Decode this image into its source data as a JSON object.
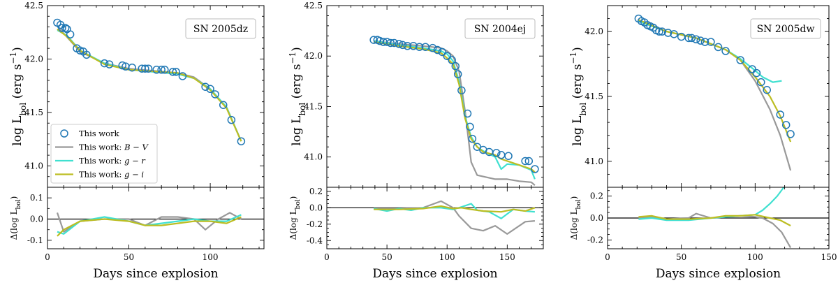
{
  "colors": {
    "points": "#1f77b4",
    "bv": "#999999",
    "gr": "#40e0d0",
    "gi": "#bcbd22",
    "zero_line": "#000000"
  },
  "legend": {
    "location": "lower-left of first panel",
    "entries": [
      {
        "key": "points",
        "label": "This work",
        "marker": "open-circle"
      },
      {
        "key": "bv",
        "label": "This work: B − V",
        "marker": "line"
      },
      {
        "key": "gr",
        "label": "This work: g − r",
        "marker": "line"
      },
      {
        "key": "gi",
        "label": "This work: g − i",
        "marker": "line"
      }
    ]
  },
  "chart_data": [
    {
      "type": "line",
      "panel_label": "SN 2005dz",
      "xlabel": "Days since explosion",
      "ylabel_main": "log L_bol (erg s^-1)",
      "ylabel_resid": "Δ(log L_bol)",
      "xlim": [
        0,
        133
      ],
      "xticks": [
        0,
        50,
        100
      ],
      "ylim_main": [
        40.8,
        42.5
      ],
      "yticks_main": [
        41.0,
        41.5,
        42.0,
        42.5
      ],
      "ylim_resid": [
        -0.14,
        0.15
      ],
      "yticks_resid": [
        -0.1,
        0.0,
        0.1
      ],
      "points": {
        "x": [
          6,
          8,
          9,
          11,
          12,
          14,
          18,
          20,
          22,
          24,
          35,
          38,
          46,
          48,
          52,
          58,
          60,
          62,
          67,
          70,
          72,
          77,
          79,
          83,
          97,
          100,
          103,
          108,
          113,
          119
        ],
        "y": [
          42.34,
          42.32,
          42.29,
          42.29,
          42.28,
          42.23,
          42.1,
          42.08,
          42.07,
          42.04,
          41.96,
          41.95,
          41.94,
          41.93,
          41.92,
          41.91,
          41.91,
          41.91,
          41.9,
          41.9,
          41.9,
          41.88,
          41.88,
          41.84,
          41.74,
          41.72,
          41.67,
          41.57,
          41.43,
          41.23
        ]
      },
      "series": [
        {
          "key": "bv",
          "name": "This work: B − V",
          "x": [
            6,
            10,
            20,
            35,
            50,
            80,
            90,
            100,
            110,
            119
          ],
          "y": [
            42.31,
            42.24,
            42.07,
            41.96,
            41.91,
            41.87,
            41.83,
            41.72,
            41.55,
            41.23
          ]
        },
        {
          "key": "gr",
          "name": "This work: g − r",
          "x": [
            6,
            12,
            20,
            35,
            50,
            80,
            90,
            100,
            110,
            119
          ],
          "y": [
            42.27,
            42.22,
            42.08,
            41.96,
            41.9,
            41.86,
            41.82,
            41.72,
            41.55,
            41.23
          ]
        },
        {
          "key": "gi",
          "name": "This work: g − i",
          "x": [
            6,
            12,
            20,
            35,
            50,
            80,
            90,
            100,
            110,
            119
          ],
          "y": [
            42.28,
            42.21,
            42.08,
            41.95,
            41.9,
            41.87,
            41.82,
            41.71,
            41.54,
            41.23
          ]
        }
      ],
      "residuals": [
        {
          "key": "bv",
          "x": [
            6,
            10,
            20,
            35,
            50,
            60,
            70,
            80,
            90,
            97,
            105,
            112,
            119
          ],
          "y": [
            0.03,
            -0.06,
            -0.01,
            0.0,
            0.0,
            -0.03,
            0.01,
            0.01,
            0.0,
            -0.05,
            0.0,
            0.03,
            0.0
          ]
        },
        {
          "key": "gr",
          "x": [
            6,
            10,
            20,
            35,
            50,
            60,
            70,
            80,
            90,
            100,
            110,
            119
          ],
          "y": [
            -0.06,
            -0.07,
            -0.01,
            0.01,
            -0.01,
            -0.03,
            -0.02,
            -0.01,
            0.0,
            -0.01,
            -0.01,
            0.02
          ]
        },
        {
          "key": "gi",
          "x": [
            6,
            10,
            20,
            35,
            50,
            60,
            70,
            80,
            90,
            100,
            110,
            119
          ],
          "y": [
            -0.08,
            -0.05,
            -0.01,
            0.0,
            -0.01,
            -0.03,
            -0.03,
            -0.02,
            -0.01,
            -0.01,
            -0.02,
            0.01
          ]
        }
      ]
    },
    {
      "type": "line",
      "panel_label": "SN 2004ej",
      "xlabel": "Days since explosion",
      "ylabel_main": "log L_bol (erg s^-1)",
      "ylabel_resid": "Δ(log L_bol)",
      "xlim": [
        0,
        180
      ],
      "xticks": [
        0,
        50,
        100,
        150
      ],
      "ylim_main": [
        40.7,
        42.5
      ],
      "yticks_main": [
        41.0,
        41.5,
        42.0,
        42.5
      ],
      "ylim_resid": [
        -0.5,
        0.25
      ],
      "yticks_resid": [
        -0.4,
        -0.2,
        0.0,
        0.2
      ],
      "points": {
        "x": [
          39,
          42,
          44,
          47,
          50,
          53,
          56,
          60,
          63,
          67,
          72,
          77,
          82,
          88,
          92,
          96,
          100,
          104,
          107,
          109,
          112,
          117,
          119,
          121,
          125,
          130,
          135,
          141,
          145,
          151,
          165,
          168,
          173
        ],
        "y": [
          42.16,
          42.16,
          42.15,
          42.14,
          42.14,
          42.13,
          42.13,
          42.12,
          42.11,
          42.1,
          42.1,
          42.09,
          42.09,
          42.08,
          42.06,
          42.04,
          42.0,
          41.96,
          41.9,
          41.82,
          41.66,
          41.43,
          41.3,
          41.18,
          41.1,
          41.07,
          41.05,
          41.04,
          41.02,
          41.01,
          40.96,
          40.96,
          40.88
        ]
      },
      "series": [
        {
          "key": "bv",
          "name": "This work: B − V",
          "x": [
            39,
            60,
            80,
            95,
            100,
            105,
            110,
            115,
            120,
            125,
            140,
            150,
            160,
            170,
            173
          ],
          "y": [
            42.15,
            42.12,
            42.1,
            42.08,
            42.05,
            42.0,
            41.85,
            41.45,
            40.95,
            40.82,
            40.78,
            40.78,
            40.76,
            40.75,
            40.72
          ]
        },
        {
          "key": "gr",
          "name": "This work: g − r",
          "x": [
            39,
            60,
            80,
            95,
            100,
            105,
            110,
            115,
            120,
            125,
            130,
            140,
            145,
            150,
            160,
            170,
            173
          ],
          "y": [
            42.15,
            42.11,
            42.08,
            42.05,
            42.02,
            41.95,
            41.75,
            41.4,
            41.2,
            41.1,
            41.06,
            41.0,
            40.88,
            40.93,
            40.92,
            40.87,
            40.78
          ]
        },
        {
          "key": "gi",
          "name": "This work: g − i",
          "x": [
            39,
            60,
            80,
            95,
            100,
            105,
            110,
            115,
            120,
            125,
            130,
            140,
            145,
            150,
            160,
            170,
            173
          ],
          "y": [
            42.14,
            42.1,
            42.07,
            42.03,
            41.98,
            41.92,
            41.72,
            41.38,
            41.18,
            41.1,
            41.05,
            41.02,
            40.98,
            40.96,
            40.92,
            40.88,
            40.85
          ]
        }
      ],
      "residuals": [
        {
          "key": "bv",
          "x": [
            39,
            60,
            80,
            95,
            105,
            110,
            120,
            130,
            140,
            150,
            165,
            173
          ],
          "y": [
            -0.01,
            -0.01,
            0.0,
            0.08,
            0.0,
            -0.1,
            -0.25,
            -0.28,
            -0.22,
            -0.32,
            -0.17,
            -0.16
          ]
        },
        {
          "key": "gr",
          "x": [
            39,
            50,
            60,
            70,
            80,
            95,
            105,
            112,
            120,
            125,
            135,
            145,
            155,
            165,
            173
          ],
          "y": [
            -0.01,
            -0.04,
            -0.01,
            -0.03,
            0.0,
            0.0,
            -0.02,
            0.01,
            0.05,
            -0.03,
            -0.05,
            -0.13,
            -0.02,
            -0.04,
            -0.05
          ]
        },
        {
          "key": "gi",
          "x": [
            39,
            60,
            80,
            95,
            105,
            112,
            120,
            130,
            145,
            155,
            165,
            173
          ],
          "y": [
            -0.02,
            -0.02,
            -0.01,
            0.02,
            -0.01,
            0.0,
            -0.02,
            -0.04,
            -0.05,
            -0.02,
            -0.04,
            0.0
          ]
        }
      ]
    },
    {
      "type": "line",
      "panel_label": "SN 2005dw",
      "xlabel": "Days since explosion",
      "ylabel_main": "log L_bol (erg s^-1)",
      "ylabel_resid": "Δ(log L_bol)",
      "xlim": [
        0,
        150
      ],
      "xticks": [
        0,
        50,
        100,
        150
      ],
      "ylim_main": [
        40.8,
        42.2
      ],
      "yticks_main": [
        41.0,
        41.5,
        42.0
      ],
      "ylim_resid": [
        -0.28,
        0.28
      ],
      "yticks_resid": [
        -0.2,
        0.0,
        0.2
      ],
      "points": {
        "x": [
          21,
          23,
          25,
          27,
          29,
          31,
          33,
          35,
          37,
          41,
          45,
          50,
          55,
          57,
          60,
          63,
          66,
          70,
          75,
          80,
          90,
          98,
          101,
          104,
          108,
          117,
          121,
          124
        ],
        "y": [
          42.1,
          42.08,
          42.07,
          42.05,
          42.04,
          42.03,
          42.01,
          42.0,
          42.0,
          41.99,
          41.98,
          41.96,
          41.95,
          41.95,
          41.94,
          41.93,
          41.92,
          41.92,
          41.88,
          41.85,
          41.78,
          41.71,
          41.68,
          41.61,
          41.55,
          41.36,
          41.28,
          41.21
        ]
      },
      "series": [
        {
          "key": "bv",
          "name": "This work: B − V",
          "x": [
            21,
            40,
            60,
            80,
            90,
            100,
            110,
            117,
            124
          ],
          "y": [
            42.08,
            42.0,
            41.95,
            41.86,
            41.78,
            41.62,
            41.4,
            41.2,
            40.93
          ]
        },
        {
          "key": "gr",
          "name": "This work: g − r",
          "x": [
            21,
            40,
            60,
            80,
            90,
            100,
            105,
            112,
            118
          ],
          "y": [
            42.08,
            42.0,
            41.95,
            41.86,
            41.79,
            41.7,
            41.65,
            41.61,
            41.62
          ]
        },
        {
          "key": "gi",
          "name": "This work: g − i",
          "x": [
            21,
            40,
            60,
            80,
            90,
            100,
            110,
            117,
            124
          ],
          "y": [
            42.09,
            42.0,
            41.95,
            41.86,
            41.78,
            41.65,
            41.5,
            41.35,
            41.15
          ]
        }
      ],
      "residuals": [
        {
          "key": "bv",
          "x": [
            21,
            30,
            40,
            55,
            60,
            70,
            80,
            90,
            100,
            105,
            112,
            118,
            124
          ],
          "y": [
            0.0,
            0.01,
            -0.01,
            0.0,
            0.04,
            0.0,
            0.01,
            0.02,
            0.01,
            0.0,
            -0.05,
            -0.13,
            -0.27
          ]
        },
        {
          "key": "gr",
          "x": [
            21,
            30,
            40,
            55,
            70,
            80,
            90,
            100,
            105,
            110,
            115,
            120
          ],
          "y": [
            -0.01,
            0.0,
            -0.02,
            -0.02,
            0.0,
            0.01,
            0.02,
            0.03,
            0.07,
            0.13,
            0.2,
            0.29
          ]
        },
        {
          "key": "gi",
          "x": [
            21,
            30,
            40,
            55,
            70,
            80,
            90,
            100,
            110,
            117,
            124
          ],
          "y": [
            0.01,
            0.02,
            -0.01,
            -0.01,
            0.0,
            0.02,
            0.02,
            0.03,
            0.0,
            -0.02,
            -0.07
          ]
        }
      ]
    }
  ]
}
